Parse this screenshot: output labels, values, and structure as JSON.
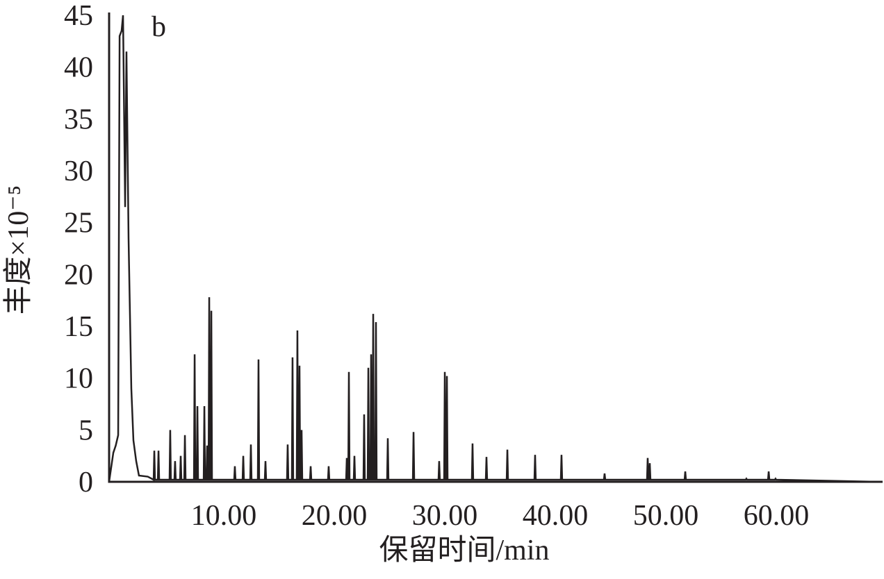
{
  "chart_data": {
    "type": "line",
    "annotation": "b",
    "x_label": "保留时间/min",
    "y_label": "丰度×10⁻⁵",
    "color": "#231f20",
    "xlim": [
      0,
      70
    ],
    "ylim": [
      0,
      45
    ],
    "xticks": [
      {
        "value": 10,
        "label": "10.00"
      },
      {
        "value": 20,
        "label": "20.00"
      },
      {
        "value": 30,
        "label": "30.00"
      },
      {
        "value": 40,
        "label": "40.00"
      },
      {
        "value": 50,
        "label": "50.00"
      },
      {
        "value": 60,
        "label": "60.00"
      }
    ],
    "yticks": [
      0,
      5,
      10,
      15,
      20,
      25,
      30,
      35,
      40,
      45
    ],
    "series": [
      {
        "x": [
          0,
          0.38,
          0.6,
          0.82,
          0.95,
          1.13,
          1.26,
          1.45,
          1.57,
          1.76,
          2.01,
          2.2,
          2.45,
          2.7,
          3.5,
          4.03,
          4.09,
          4.15,
          4.41,
          4.47,
          4.53,
          5.47,
          5.53,
          5.59,
          5.91,
          5.97,
          6.03,
          6.42,
          6.48,
          6.54,
          6.8,
          6.86,
          6.92,
          7.68,
          7.74,
          7.8,
          7.93,
          7.99,
          8.05,
          8.56,
          8.62,
          8.68,
          8.81,
          8.87,
          8.93,
          9.0,
          9.06,
          9.12,
          9.19,
          9.25,
          9.31,
          11.32,
          11.38,
          11.44,
          12.08,
          12.14,
          12.2,
          12.77,
          12.83,
          12.89,
          13.46,
          13.52,
          13.58,
          14.09,
          14.15,
          14.21,
          16.1,
          16.16,
          16.22,
          16.54,
          16.6,
          16.66,
          16.98,
          17.04,
          17.1,
          17.17,
          17.23,
          17.29,
          17.36,
          17.42,
          17.48,
          18.18,
          18.24,
          18.3,
          19.81,
          19.87,
          19.93,
          21.45,
          21.51,
          21.57,
          21.64,
          21.7,
          21.76,
          22.14,
          22.2,
          22.26,
          23.02,
          23.08,
          23.14,
          23.4,
          23.46,
          23.52,
          23.65,
          23.71,
          23.77,
          23.84,
          23.9,
          23.96,
          24.09,
          24.15,
          24.21,
          25.16,
          25.22,
          25.28,
          27.49,
          27.55,
          27.61,
          29.81,
          29.87,
          29.93,
          30.32,
          30.38,
          30.44,
          30.51,
          30.57,
          30.63,
          32.83,
          32.89,
          32.95,
          34.09,
          34.15,
          34.21,
          35.98,
          36.04,
          36.1,
          38.49,
          38.55,
          38.61,
          40.88,
          40.94,
          41.0,
          44.78,
          44.84,
          44.9,
          48.68,
          48.74,
          48.8,
          48.87,
          48.93,
          48.99,
          52.08,
          52.14,
          52.2,
          57.61,
          57.67,
          57.73,
          59.63,
          59.69,
          59.75,
          60.25,
          60.31,
          60.37,
          69.6
        ],
        "values": [
          0,
          2.8,
          3.5,
          4.5,
          43,
          43.5,
          45,
          26.5,
          41.5,
          23.5,
          9,
          4,
          2,
          0.6,
          0.5,
          0.2,
          3,
          0.2,
          0.2,
          3,
          0.2,
          0.2,
          5,
          0.2,
          0.2,
          2,
          0.2,
          0.2,
          2.5,
          0.2,
          0.2,
          4.5,
          0.2,
          0.2,
          12.3,
          0.2,
          0.2,
          7.3,
          0.2,
          0.2,
          7.3,
          0.2,
          0.2,
          3.5,
          0.2,
          0.2,
          17.8,
          0.2,
          0.2,
          16.5,
          0.2,
          0.2,
          1.5,
          0.2,
          0.2,
          2.5,
          0.2,
          0.2,
          3.6,
          0.2,
          0.2,
          11.8,
          0.2,
          0.2,
          2,
          0.2,
          0.2,
          3.6,
          0.2,
          0.2,
          12,
          0.2,
          0.2,
          14.6,
          0.2,
          0.2,
          11.2,
          0.2,
          0.2,
          5,
          0.2,
          0.2,
          1.5,
          0.2,
          0.2,
          1.5,
          0.2,
          0.2,
          2.3,
          0.2,
          0.2,
          10.6,
          0.2,
          0.2,
          2.5,
          0.2,
          0.2,
          6.5,
          0.2,
          0.2,
          11,
          0.2,
          0.2,
          12.3,
          0.2,
          0.2,
          16.2,
          0.2,
          0.2,
          15.4,
          0.2,
          0.2,
          4.2,
          0.2,
          0.2,
          4.8,
          0.2,
          0.2,
          2,
          0.2,
          0.2,
          10.6,
          0.2,
          0.2,
          10.2,
          0.2,
          0.2,
          3.7,
          0.2,
          0.2,
          2.4,
          0.2,
          0.2,
          3.1,
          0.2,
          0.2,
          2.6,
          0.2,
          0.2,
          2.6,
          0.2,
          0.2,
          0.8,
          0.2,
          0.2,
          2.3,
          0.2,
          0.2,
          1.8,
          0.2,
          0.2,
          1,
          0.2,
          0.2,
          0.3,
          0.2,
          0.2,
          1,
          0.2,
          0.2,
          0.3,
          0.2,
          0
        ]
      }
    ]
  }
}
